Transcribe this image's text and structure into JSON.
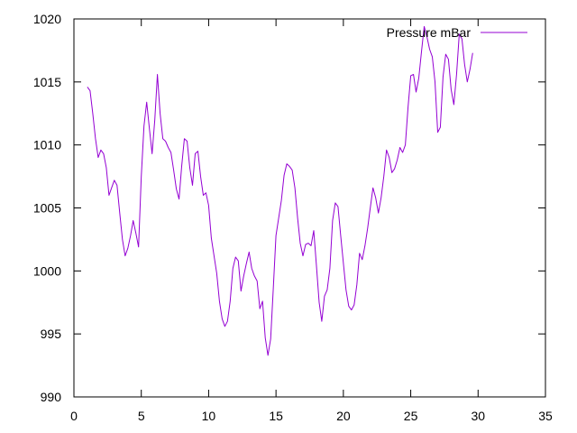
{
  "chart_data": {
    "type": "line",
    "xlim": [
      0,
      35
    ],
    "ylim": [
      990,
      1020
    ],
    "x_ticks": [
      0,
      5,
      10,
      15,
      20,
      25,
      30,
      35
    ],
    "y_ticks": [
      990,
      995,
      1000,
      1005,
      1010,
      1015,
      1020
    ],
    "grid": false,
    "legend_position": "top-right",
    "series": [
      {
        "name": "Pressure mBar",
        "color": "#9400d3",
        "points": [
          [
            1.0,
            1014.6
          ],
          [
            1.2,
            1014.3
          ],
          [
            1.4,
            1012.5
          ],
          [
            1.6,
            1010.5
          ],
          [
            1.8,
            1009.0
          ],
          [
            2.0,
            1009.6
          ],
          [
            2.2,
            1009.3
          ],
          [
            2.4,
            1008.2
          ],
          [
            2.6,
            1006.0
          ],
          [
            2.8,
            1006.6
          ],
          [
            3.0,
            1007.2
          ],
          [
            3.2,
            1006.8
          ],
          [
            3.4,
            1004.6
          ],
          [
            3.6,
            1002.5
          ],
          [
            3.8,
            1001.2
          ],
          [
            4.0,
            1001.8
          ],
          [
            4.2,
            1002.8
          ],
          [
            4.4,
            1004.0
          ],
          [
            4.6,
            1003.0
          ],
          [
            4.8,
            1001.9
          ],
          [
            5.0,
            1007.5
          ],
          [
            5.2,
            1011.5
          ],
          [
            5.4,
            1013.4
          ],
          [
            5.6,
            1011.3
          ],
          [
            5.8,
            1009.3
          ],
          [
            6.0,
            1012.0
          ],
          [
            6.2,
            1015.6
          ],
          [
            6.4,
            1012.5
          ],
          [
            6.6,
            1010.5
          ],
          [
            6.8,
            1010.3
          ],
          [
            7.0,
            1009.8
          ],
          [
            7.2,
            1009.4
          ],
          [
            7.4,
            1008.0
          ],
          [
            7.6,
            1006.5
          ],
          [
            7.8,
            1005.7
          ],
          [
            8.0,
            1008.3
          ],
          [
            8.2,
            1010.5
          ],
          [
            8.4,
            1010.3
          ],
          [
            8.6,
            1008.2
          ],
          [
            8.8,
            1006.8
          ],
          [
            9.0,
            1009.3
          ],
          [
            9.2,
            1009.5
          ],
          [
            9.4,
            1007.5
          ],
          [
            9.6,
            1006.0
          ],
          [
            9.8,
            1006.2
          ],
          [
            10.0,
            1005.2
          ],
          [
            10.2,
            1002.6
          ],
          [
            10.4,
            1001.2
          ],
          [
            10.6,
            999.8
          ],
          [
            10.8,
            997.6
          ],
          [
            11.0,
            996.2
          ],
          [
            11.2,
            995.6
          ],
          [
            11.4,
            996.0
          ],
          [
            11.6,
            997.6
          ],
          [
            11.8,
            1000.2
          ],
          [
            12.0,
            1001.1
          ],
          [
            12.2,
            1000.8
          ],
          [
            12.4,
            998.4
          ],
          [
            12.6,
            999.6
          ],
          [
            12.8,
            1000.6
          ],
          [
            13.0,
            1001.5
          ],
          [
            13.2,
            1000.2
          ],
          [
            13.4,
            999.6
          ],
          [
            13.6,
            999.2
          ],
          [
            13.8,
            997.0
          ],
          [
            14.0,
            997.6
          ],
          [
            14.2,
            994.7
          ],
          [
            14.4,
            993.3
          ],
          [
            14.6,
            994.6
          ],
          [
            14.8,
            998.7
          ],
          [
            15.0,
            1002.8
          ],
          [
            15.2,
            1004.2
          ],
          [
            15.4,
            1005.6
          ],
          [
            15.6,
            1007.6
          ],
          [
            15.8,
            1008.5
          ],
          [
            16.0,
            1008.3
          ],
          [
            16.2,
            1008.0
          ],
          [
            16.4,
            1006.6
          ],
          [
            16.6,
            1004.2
          ],
          [
            16.8,
            1002.2
          ],
          [
            17.0,
            1001.2
          ],
          [
            17.2,
            1002.1
          ],
          [
            17.4,
            1002.2
          ],
          [
            17.6,
            1002.0
          ],
          [
            17.8,
            1003.2
          ],
          [
            18.0,
            1000.4
          ],
          [
            18.2,
            997.5
          ],
          [
            18.4,
            996.0
          ],
          [
            18.6,
            998.0
          ],
          [
            18.8,
            998.5
          ],
          [
            19.0,
            1000.2
          ],
          [
            19.2,
            1004.0
          ],
          [
            19.4,
            1005.4
          ],
          [
            19.6,
            1005.1
          ],
          [
            19.8,
            1002.8
          ],
          [
            20.0,
            1000.6
          ],
          [
            20.2,
            998.5
          ],
          [
            20.4,
            997.2
          ],
          [
            20.6,
            996.9
          ],
          [
            20.8,
            997.3
          ],
          [
            21.0,
            998.9
          ],
          [
            21.2,
            1001.4
          ],
          [
            21.4,
            1000.9
          ],
          [
            21.6,
            1002.0
          ],
          [
            21.8,
            1003.4
          ],
          [
            22.0,
            1005.0
          ],
          [
            22.2,
            1006.6
          ],
          [
            22.4,
            1005.8
          ],
          [
            22.6,
            1004.6
          ],
          [
            22.8,
            1005.8
          ],
          [
            23.0,
            1007.5
          ],
          [
            23.2,
            1009.6
          ],
          [
            23.4,
            1009.0
          ],
          [
            23.6,
            1007.8
          ],
          [
            23.8,
            1008.1
          ],
          [
            24.0,
            1008.8
          ],
          [
            24.2,
            1009.8
          ],
          [
            24.4,
            1009.4
          ],
          [
            24.6,
            1010.0
          ],
          [
            24.8,
            1013.0
          ],
          [
            25.0,
            1015.5
          ],
          [
            25.2,
            1015.6
          ],
          [
            25.4,
            1014.2
          ],
          [
            25.6,
            1015.3
          ],
          [
            25.8,
            1017.4
          ],
          [
            26.0,
            1019.4
          ],
          [
            26.2,
            1018.6
          ],
          [
            26.4,
            1017.6
          ],
          [
            26.6,
            1017.0
          ],
          [
            26.8,
            1015.0
          ],
          [
            27.0,
            1011.0
          ],
          [
            27.2,
            1011.4
          ],
          [
            27.4,
            1015.4
          ],
          [
            27.6,
            1017.2
          ],
          [
            27.8,
            1016.8
          ],
          [
            28.0,
            1014.4
          ],
          [
            28.2,
            1013.2
          ],
          [
            28.4,
            1015.6
          ],
          [
            28.6,
            1018.8
          ],
          [
            28.8,
            1018.4
          ],
          [
            29.0,
            1016.4
          ],
          [
            29.2,
            1015.0
          ],
          [
            29.4,
            1016.0
          ],
          [
            29.6,
            1017.3
          ]
        ]
      }
    ]
  }
}
